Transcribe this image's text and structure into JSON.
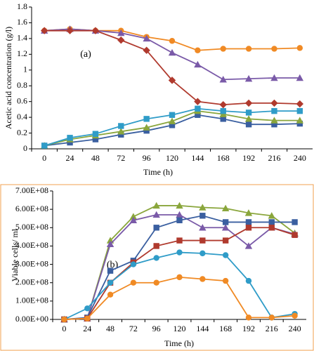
{
  "chart_data": [
    {
      "type": "line",
      "annotation": "(a)",
      "xlabel": "Time (h)",
      "ylabel": "Acetic acid concentration (g/l)",
      "categories": [
        "0",
        "24",
        "48",
        "72",
        "96",
        "120",
        "144",
        "168",
        "192",
        "216",
        "240"
      ],
      "ylim": [
        0,
        1.8
      ],
      "yticks": [
        0,
        0.2,
        0.4,
        0.6,
        0.8,
        1,
        1.2,
        1.4,
        1.6,
        1.8
      ],
      "grid": false,
      "series": [
        {
          "name": "orange",
          "color": "#f08a24",
          "marker": "circle",
          "values": [
            1.5,
            1.52,
            1.5,
            1.5,
            1.42,
            1.37,
            1.25,
            1.27,
            1.27,
            1.27,
            1.28
          ]
        },
        {
          "name": "purple",
          "color": "#7a5aa8",
          "marker": "triangle",
          "values": [
            1.5,
            1.52,
            1.5,
            1.47,
            1.4,
            1.22,
            1.07,
            0.88,
            0.89,
            0.9,
            0.9
          ]
        },
        {
          "name": "red",
          "color": "#b03a2e",
          "marker": "diamond",
          "values": [
            1.5,
            1.5,
            1.5,
            1.38,
            1.25,
            0.87,
            0.6,
            0.56,
            0.58,
            0.58,
            0.57
          ]
        },
        {
          "name": "blue",
          "color": "#3a5fa0",
          "marker": "square",
          "values": [
            0.04,
            0.08,
            0.12,
            0.18,
            0.23,
            0.3,
            0.43,
            0.38,
            0.31,
            0.31,
            0.32
          ]
        },
        {
          "name": "green",
          "color": "#8aa63c",
          "marker": "triangle",
          "values": [
            0.04,
            0.12,
            0.17,
            0.22,
            0.27,
            0.35,
            0.48,
            0.44,
            0.38,
            0.36,
            0.36
          ]
        },
        {
          "name": "teal",
          "color": "#2f9cc8",
          "marker": "square",
          "values": [
            0.04,
            0.14,
            0.19,
            0.29,
            0.38,
            0.43,
            0.51,
            0.48,
            0.46,
            0.48,
            0.48
          ]
        }
      ]
    },
    {
      "type": "line",
      "annotation": "(b)",
      "xlabel": "Time (h)",
      "ylabel": "Viable cells/ ml",
      "categories": [
        "0",
        "24",
        "48",
        "72",
        "96",
        "120",
        "144",
        "168",
        "192",
        "216",
        "240"
      ],
      "ylim": [
        0,
        700000000
      ],
      "yticks": [
        {
          "value": 0,
          "label": "0.00E+00"
        },
        {
          "value": 100000000,
          "label": "1.00E+08"
        },
        {
          "value": 200000000,
          "label": "2.00E+08"
        },
        {
          "value": 300000000,
          "label": "3.00E+08"
        },
        {
          "value": 400000000,
          "label": "4.00E+08"
        },
        {
          "value": 500000000,
          "label": "5.00E+08"
        },
        {
          "value": 600000000,
          "label": "6.00E+08"
        },
        {
          "value": 700000000,
          "label": "7.00E+08"
        }
      ],
      "grid": false,
      "series": [
        {
          "name": "green",
          "color": "#8aa63c",
          "marker": "triangle",
          "values": [
            0,
            5000000,
            430000000,
            560000000,
            620000000,
            620000000,
            610000000,
            605000000,
            580000000,
            565000000,
            470000000
          ]
        },
        {
          "name": "purple",
          "color": "#7a5aa8",
          "marker": "triangle",
          "values": [
            0,
            5000000,
            410000000,
            540000000,
            570000000,
            570000000,
            500000000,
            500000000,
            400000000,
            500000000,
            465000000
          ]
        },
        {
          "name": "blue",
          "color": "#3a5fa0",
          "marker": "square",
          "values": [
            0,
            10000000,
            265000000,
            320000000,
            500000000,
            540000000,
            565000000,
            530000000,
            530000000,
            530000000,
            530000000
          ]
        },
        {
          "name": "red",
          "color": "#b03a2e",
          "marker": "square",
          "values": [
            0,
            5000000,
            200000000,
            310000000,
            400000000,
            430000000,
            430000000,
            430000000,
            500000000,
            500000000,
            460000000
          ]
        },
        {
          "name": "teal",
          "color": "#2f9cc8",
          "marker": "circle",
          "values": [
            0,
            60000000,
            200000000,
            300000000,
            335000000,
            365000000,
            360000000,
            350000000,
            210000000,
            10000000,
            30000000
          ]
        },
        {
          "name": "orange",
          "color": "#f08a24",
          "marker": "circle",
          "values": [
            0,
            5000000,
            135000000,
            200000000,
            200000000,
            230000000,
            220000000,
            210000000,
            10000000,
            10000000,
            20000000
          ]
        }
      ]
    }
  ]
}
